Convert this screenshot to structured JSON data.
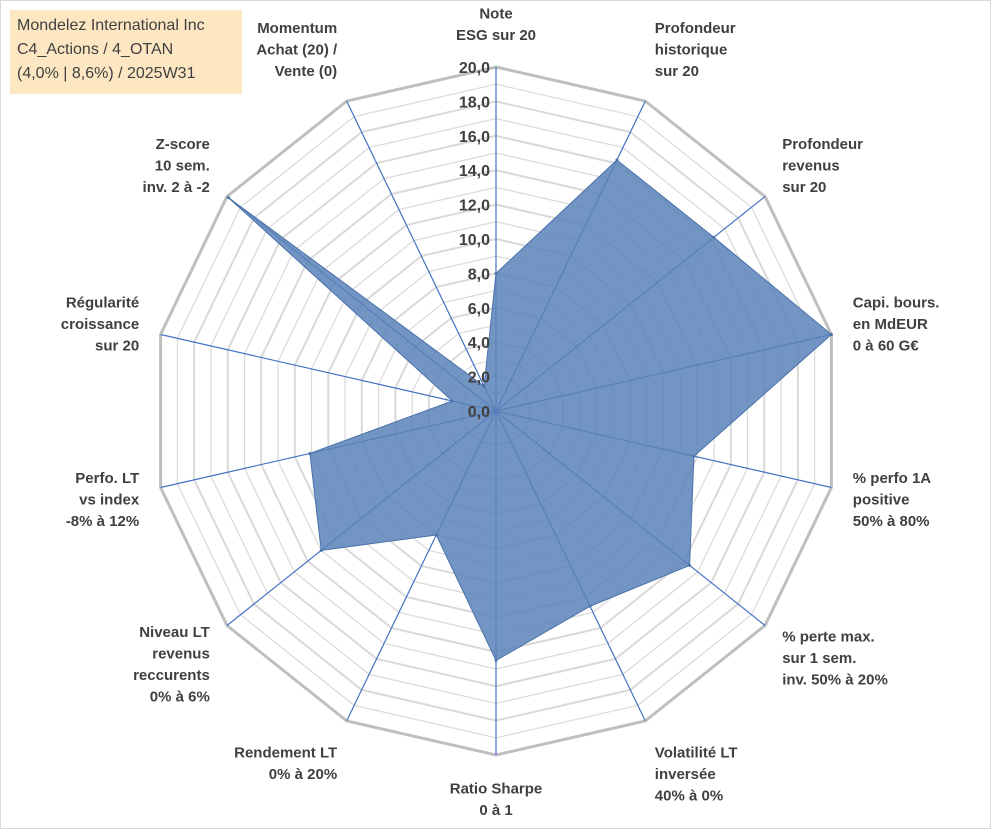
{
  "info_box": {
    "line1": "Mondelez International Inc",
    "line2": "C4_Actions / 4_OTAN",
    "line3": "(4,0% | 8,6%) / 2025W31"
  },
  "chart_data": {
    "type": "radar",
    "rmin": 0,
    "rmax": 20,
    "ticks": [
      "0,0",
      "2,0",
      "4,0",
      "6,0",
      "8,0",
      "10,0",
      "12,0",
      "14,0",
      "16,0",
      "18,0",
      "20,0"
    ],
    "axes": [
      [
        "Note",
        "ESG sur 20"
      ],
      [
        "Profondeur",
        "historique",
        "sur 20"
      ],
      [
        "Profondeur",
        "revenus",
        "sur 20"
      ],
      [
        "Capi. bours.",
        "en MdEUR",
        "0 à 60 G€"
      ],
      [
        "% perfo 1A",
        "positive",
        "50% à 80%"
      ],
      [
        "% perte max.",
        "sur 1 sem.",
        "inv. 50% à 20%"
      ],
      [
        "Volatilité LT",
        "inversée",
        "40% à 0%"
      ],
      [
        "Ratio Sharpe",
        "0 à 1"
      ],
      [
        "Rendement LT",
        "0% à 20%"
      ],
      [
        "Niveau LT",
        "revenus",
        "reccurents",
        "0% à 6%"
      ],
      [
        "Perfo. LT",
        "vs index",
        "-8% à 12%"
      ],
      [
        "Régularité",
        "croissance",
        "sur 20"
      ],
      [
        "Z-score",
        "10 sem.",
        "inv. 2 à -2"
      ],
      [
        "Momentum",
        "Achat (20) /",
        "Vente (0)"
      ]
    ],
    "series": [
      {
        "values": [
          8.0,
          16.2,
          16.2,
          20.0,
          11.8,
          14.4,
          12.6,
          14.5,
          8.0,
          13.0,
          11.1,
          2.6,
          19.9,
          1.6
        ]
      }
    ],
    "colors": {
      "fill": "#5b83b8",
      "stroke": "#4a72aa",
      "spoke": "#4472c4",
      "grid": "#d9d9d9",
      "outer_grid": "#bfbfbf"
    },
    "grid": true
  }
}
